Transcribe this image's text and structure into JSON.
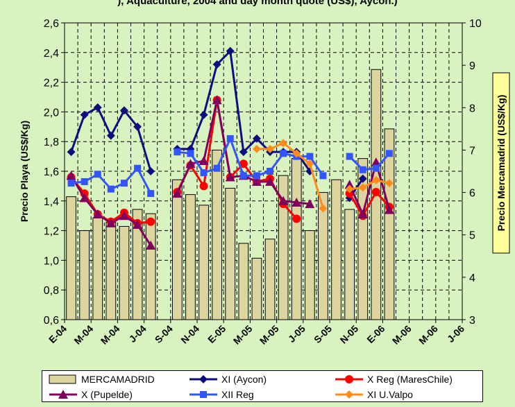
{
  "header_fragment": "), Aquaculture, 2004 and day month quote (US$), Aycon.)",
  "chart_data": {
    "type": "bar+line",
    "x_tick_labels": [
      "E-04",
      "M-04",
      "M-04",
      "J-04",
      "S-04",
      "N-04",
      "E-05",
      "M-05",
      "M-05",
      "J-05",
      "S-05",
      "N-05",
      "E-06",
      "M-06",
      "M-06",
      "J-06"
    ],
    "y_left": {
      "label": "Precio Playa (US$/Kg)",
      "min": 0.6,
      "max": 2.6,
      "ticks": [
        "0,6",
        "0,8",
        "1,0",
        "1,2",
        "1,4",
        "1,6",
        "1,8",
        "2,0",
        "2,2",
        "2,4",
        "2,6"
      ]
    },
    "y_right": {
      "label": "Precio Mercamadrid (US$/Kg)",
      "min": 3,
      "max": 10,
      "ticks": [
        "3",
        "4",
        "5",
        "6",
        "7",
        "8",
        "9",
        "10"
      ]
    },
    "grid": true,
    "bars": {
      "name": "MERCAMADRID",
      "axis": "right",
      "values": [
        5.9,
        5.1,
        5.4,
        5.3,
        5.2,
        5.6,
        5.5,
        null,
        6.3,
        5.95,
        5.7,
        7.0,
        6.1,
        4.8,
        4.45,
        4.9,
        6.4,
        6.8,
        5.1,
        6.0,
        6.3,
        5.6,
        6.8,
        8.9,
        7.5
      ],
      "color": "#ddd5a0"
    },
    "series": [
      {
        "name": "XI (Aycon)",
        "color": "#0d0d80",
        "marker": "diamond",
        "values": [
          1.73,
          1.98,
          2.03,
          1.84,
          2.01,
          1.9,
          1.6,
          null,
          1.75,
          1.75,
          1.98,
          2.32,
          2.41,
          1.73,
          1.82,
          1.73,
          1.73,
          1.73,
          1.6,
          null,
          null,
          1.42,
          1.55,
          null,
          null
        ]
      },
      {
        "name": "X Reg (MaresChile)",
        "color": "#ff0000",
        "marker": "circle",
        "values": [
          1.56,
          1.45,
          1.31,
          1.26,
          1.32,
          1.25,
          1.26,
          null,
          1.46,
          1.64,
          1.5,
          2.08,
          1.56,
          1.65,
          1.53,
          1.55,
          1.38,
          1.28,
          null,
          null,
          null,
          1.45,
          1.3,
          1.46,
          1.36
        ]
      },
      {
        "name": "X  (Pupelde)",
        "color": "#800060",
        "marker": "triangle",
        "values": [
          1.57,
          1.42,
          1.31,
          1.25,
          1.3,
          1.24,
          1.1,
          null,
          1.45,
          1.65,
          1.67,
          2.08,
          1.56,
          1.57,
          1.53,
          1.53,
          1.4,
          1.39,
          1.38,
          null,
          null,
          1.51,
          1.31,
          1.66,
          1.34
        ]
      },
      {
        "name": "XII Reg",
        "color": "#3355ff",
        "marker": "square",
        "values": [
          1.52,
          1.53,
          1.58,
          1.48,
          1.52,
          1.62,
          1.45,
          null,
          1.73,
          1.72,
          1.59,
          1.62,
          1.82,
          1.57,
          1.57,
          1.6,
          1.72,
          1.7,
          1.7,
          1.57,
          null,
          1.7,
          1.61,
          1.62,
          1.72
        ]
      },
      {
        "name": "XI U.Valpo",
        "color": "#ff8c1a",
        "marker": "diamond",
        "values": [
          null,
          null,
          null,
          null,
          null,
          null,
          null,
          null,
          null,
          null,
          null,
          null,
          null,
          null,
          1.75,
          1.75,
          1.79,
          1.72,
          1.65,
          1.35,
          null,
          1.48,
          1.49,
          1.54,
          1.52
        ]
      }
    ]
  }
}
